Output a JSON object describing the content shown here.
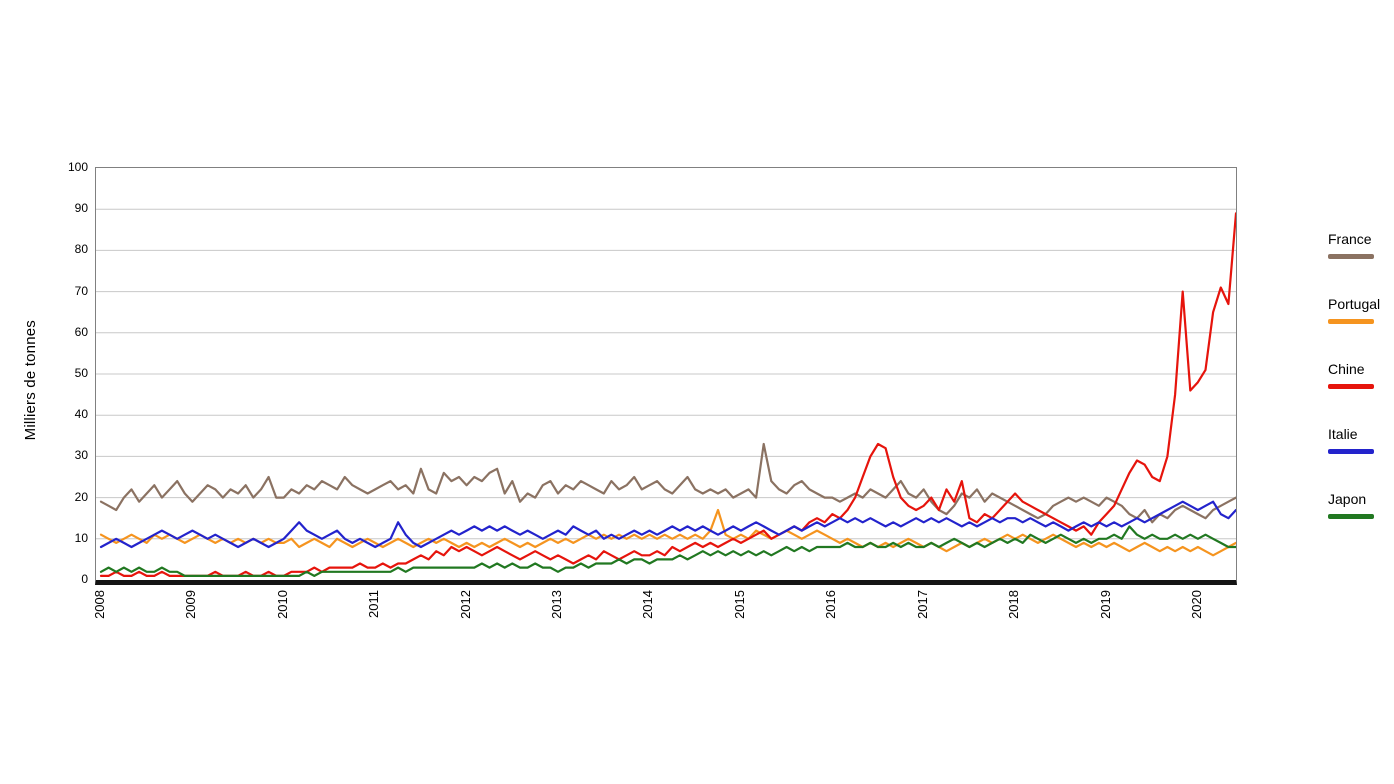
{
  "page": {
    "background": "#ffffff"
  },
  "chart_data": {
    "type": "line",
    "title": "",
    "xlabel": "",
    "ylabel": "Milliers de tonnes",
    "ylim": [
      0,
      100
    ],
    "yticks": [
      0,
      10,
      20,
      30,
      40,
      50,
      60,
      70,
      80,
      90,
      100
    ],
    "x_tick_labels": [
      "2008",
      "2009",
      "2010",
      "2011",
      "2012",
      "2013",
      "2014",
      "2015",
      "2016",
      "2017",
      "2018",
      "2019",
      "2020"
    ],
    "x_frequency": "monthly",
    "points_per_series": 150,
    "grid": "horizontal",
    "gridline_color": "#c8c8c8",
    "axis_color": "#141414",
    "frame_color": "#808080",
    "legend_position": "right",
    "series": [
      {
        "name": "France",
        "color": "#8b7262",
        "values": [
          19,
          18,
          17,
          20,
          22,
          19,
          21,
          23,
          20,
          22,
          24,
          21,
          19,
          21,
          23,
          22,
          20,
          22,
          21,
          23,
          20,
          22,
          25,
          20,
          20,
          22,
          21,
          23,
          22,
          24,
          23,
          22,
          25,
          23,
          22,
          21,
          22,
          23,
          24,
          22,
          23,
          21,
          27,
          22,
          21,
          26,
          24,
          25,
          23,
          25,
          24,
          26,
          27,
          21,
          24,
          19,
          21,
          20,
          23,
          24,
          21,
          23,
          22,
          24,
          23,
          22,
          21,
          24,
          22,
          23,
          25,
          22,
          23,
          24,
          22,
          21,
          23,
          25,
          22,
          21,
          22,
          21,
          22,
          20,
          21,
          22,
          20,
          33,
          24,
          22,
          21,
          23,
          24,
          22,
          21,
          20,
          20,
          19,
          20,
          21,
          20,
          22,
          21,
          20,
          22,
          24,
          21,
          20,
          22,
          19,
          17,
          16,
          18,
          21,
          20,
          22,
          19,
          21,
          20,
          19,
          18,
          17,
          16,
          15,
          16,
          18,
          19,
          20,
          19,
          20,
          19,
          18,
          20,
          19,
          18,
          16,
          15,
          17,
          14,
          16,
          15,
          17,
          18,
          17,
          16,
          15,
          17,
          18,
          19,
          20
        ]
      },
      {
        "name": "Portugal",
        "color": "#f5941f",
        "values": [
          11,
          10,
          9,
          10,
          11,
          10,
          9,
          11,
          10,
          11,
          10,
          9,
          10,
          11,
          10,
          9,
          10,
          9,
          10,
          9,
          10,
          9,
          10,
          9,
          9,
          10,
          8,
          9,
          10,
          9,
          8,
          10,
          9,
          8,
          9,
          10,
          9,
          8,
          9,
          10,
          9,
          8,
          9,
          10,
          9,
          10,
          9,
          8,
          9,
          8,
          9,
          8,
          9,
          10,
          9,
          8,
          9,
          8,
          9,
          10,
          9,
          10,
          9,
          10,
          11,
          10,
          11,
          10,
          11,
          10,
          11,
          10,
          11,
          10,
          11,
          10,
          11,
          10,
          11,
          10,
          12,
          17,
          11,
          10,
          11,
          10,
          12,
          11,
          10,
          11,
          12,
          11,
          10,
          11,
          12,
          11,
          10,
          9,
          10,
          9,
          8,
          9,
          8,
          9,
          8,
          9,
          10,
          9,
          8,
          9,
          8,
          7,
          8,
          9,
          8,
          9,
          10,
          9,
          10,
          11,
          10,
          11,
          10,
          9,
          10,
          11,
          10,
          9,
          8,
          9,
          8,
          9,
          8,
          9,
          8,
          7,
          8,
          9,
          8,
          7,
          8,
          7,
          8,
          7,
          8,
          7,
          6,
          7,
          8,
          9
        ]
      },
      {
        "name": "Chine",
        "color": "#e6140c",
        "values": [
          1,
          1,
          2,
          1,
          1,
          2,
          1,
          1,
          2,
          1,
          1,
          1,
          1,
          1,
          1,
          2,
          1,
          1,
          1,
          2,
          1,
          1,
          2,
          1,
          1,
          2,
          2,
          2,
          3,
          2,
          3,
          3,
          3,
          3,
          4,
          3,
          3,
          4,
          3,
          4,
          4,
          5,
          6,
          5,
          7,
          6,
          8,
          7,
          8,
          7,
          6,
          7,
          8,
          7,
          6,
          5,
          6,
          7,
          6,
          5,
          6,
          5,
          4,
          5,
          6,
          5,
          7,
          6,
          5,
          6,
          7,
          6,
          6,
          7,
          6,
          8,
          7,
          8,
          9,
          8,
          9,
          8,
          9,
          10,
          9,
          10,
          11,
          12,
          10,
          11,
          12,
          13,
          12,
          14,
          15,
          14,
          16,
          15,
          17,
          20,
          25,
          30,
          33,
          32,
          25,
          20,
          18,
          17,
          18,
          20,
          17,
          22,
          19,
          24,
          15,
          14,
          16,
          15,
          17,
          19,
          21,
          19,
          18,
          17,
          16,
          15,
          14,
          13,
          12,
          13,
          11,
          14,
          16,
          18,
          22,
          26,
          29,
          28,
          25,
          24,
          30,
          45,
          70,
          46,
          48,
          51,
          65,
          71,
          67,
          89
        ]
      },
      {
        "name": "Italie",
        "color": "#2323cc",
        "values": [
          8,
          9,
          10,
          9,
          8,
          9,
          10,
          11,
          12,
          11,
          10,
          11,
          12,
          11,
          10,
          11,
          10,
          9,
          8,
          9,
          10,
          9,
          8,
          9,
          10,
          12,
          14,
          12,
          11,
          10,
          11,
          12,
          10,
          9,
          10,
          9,
          8,
          9,
          10,
          14,
          11,
          9,
          8,
          9,
          10,
          11,
          12,
          11,
          12,
          13,
          12,
          13,
          12,
          13,
          12,
          11,
          12,
          11,
          10,
          11,
          12,
          11,
          13,
          12,
          11,
          12,
          10,
          11,
          10,
          11,
          12,
          11,
          12,
          11,
          12,
          13,
          12,
          13,
          12,
          13,
          12,
          11,
          12,
          13,
          12,
          13,
          14,
          13,
          12,
          11,
          12,
          13,
          12,
          13,
          14,
          13,
          14,
          15,
          14,
          15,
          14,
          15,
          14,
          13,
          14,
          13,
          14,
          15,
          14,
          15,
          14,
          15,
          14,
          13,
          14,
          13,
          14,
          15,
          14,
          15,
          15,
          14,
          15,
          14,
          13,
          14,
          13,
          12,
          13,
          14,
          13,
          14,
          13,
          14,
          13,
          14,
          15,
          14,
          15,
          16,
          17,
          18,
          19,
          18,
          17,
          18,
          19,
          16,
          15,
          17
        ]
      },
      {
        "name": "Japon",
        "color": "#217821",
        "values": [
          2,
          3,
          2,
          3,
          2,
          3,
          2,
          2,
          3,
          2,
          2,
          1,
          1,
          1,
          1,
          1,
          1,
          1,
          1,
          1,
          1,
          1,
          1,
          1,
          1,
          1,
          1,
          2,
          1,
          2,
          2,
          2,
          2,
          2,
          2,
          2,
          2,
          2,
          2,
          3,
          2,
          3,
          3,
          3,
          3,
          3,
          3,
          3,
          3,
          3,
          4,
          3,
          4,
          3,
          4,
          3,
          3,
          4,
          3,
          3,
          2,
          3,
          3,
          4,
          3,
          4,
          4,
          4,
          5,
          4,
          5,
          5,
          4,
          5,
          5,
          5,
          6,
          5,
          6,
          7,
          6,
          7,
          6,
          7,
          6,
          7,
          6,
          7,
          6,
          7,
          8,
          7,
          8,
          7,
          8,
          8,
          8,
          8,
          9,
          8,
          8,
          9,
          8,
          8,
          9,
          8,
          9,
          8,
          8,
          9,
          8,
          9,
          10,
          9,
          8,
          9,
          8,
          9,
          10,
          9,
          10,
          9,
          11,
          10,
          9,
          10,
          11,
          10,
          9,
          10,
          9,
          10,
          10,
          11,
          10,
          13,
          11,
          10,
          11,
          10,
          10,
          11,
          10,
          11,
          10,
          11,
          10,
          9,
          8,
          8
        ]
      }
    ]
  }
}
